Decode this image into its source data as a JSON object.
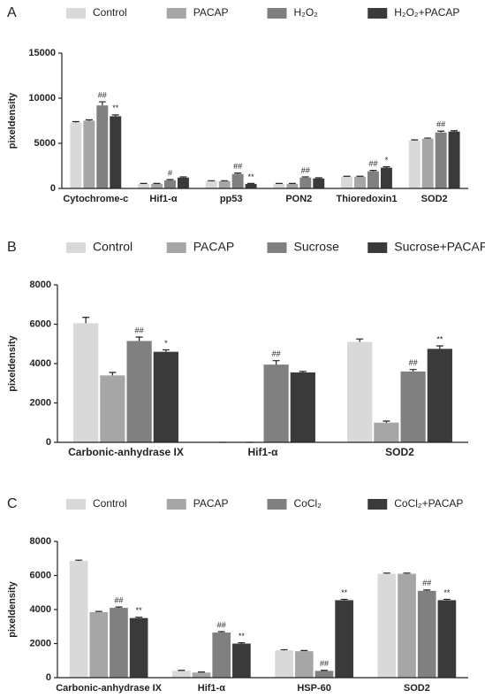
{
  "chart_data": [
    {
      "type": "bar",
      "panel": "A",
      "y_label": "pixeldensity",
      "categories": [
        "Cytochrome-c",
        "Hif1-α",
        "pp53",
        "PON2",
        "Thioredoxin1",
        "SOD2"
      ],
      "ylim": [
        0,
        15000
      ],
      "yticks": [
        0,
        5000,
        10000,
        15000
      ],
      "series": [
        {
          "name": "Control",
          "color": "#d9d9d9",
          "values": [
            7300,
            500,
            800,
            500,
            1300,
            5300
          ],
          "errors": [
            100,
            50,
            50,
            50,
            50,
            80
          ],
          "annotations": [
            null,
            null,
            null,
            null,
            null,
            null
          ]
        },
        {
          "name": "PACAP",
          "color": "#a6a6a6",
          "values": [
            7500,
            500,
            800,
            500,
            1300,
            5500
          ],
          "errors": [
            100,
            50,
            50,
            50,
            50,
            80
          ],
          "annotations": [
            null,
            null,
            null,
            null,
            null,
            null
          ]
        },
        {
          "name": "H₂O₂",
          "color": "#808080",
          "values": [
            9200,
            900,
            1600,
            1200,
            1900,
            6200
          ],
          "errors": [
            400,
            80,
            100,
            80,
            100,
            150
          ],
          "annotations": [
            "##",
            "#",
            "##",
            "##",
            "##",
            "##"
          ]
        },
        {
          "name": "H₂O₂+PACAP",
          "color": "#3a3a3a",
          "values": [
            8000,
            1200,
            500,
            1100,
            2300,
            6300
          ],
          "errors": [
            150,
            80,
            50,
            80,
            100,
            100
          ],
          "annotations": [
            "**",
            null,
            "**",
            null,
            "*",
            null
          ]
        }
      ]
    },
    {
      "type": "bar",
      "panel": "B",
      "y_label": "pixeldensity",
      "categories": [
        "Carbonic-anhydrase IX",
        "Hif1-α",
        "SOD2"
      ],
      "ylim": [
        0,
        8000
      ],
      "yticks": [
        0,
        2000,
        4000,
        6000,
        8000
      ],
      "series": [
        {
          "name": "Control",
          "color": "#d9d9d9",
          "values": [
            6050,
            0,
            5100
          ],
          "errors": [
            300,
            0,
            150
          ],
          "annotations": [
            null,
            null,
            null
          ]
        },
        {
          "name": "PACAP",
          "color": "#a6a6a6",
          "values": [
            3400,
            0,
            1000
          ],
          "errors": [
            150,
            0,
            80
          ],
          "annotations": [
            null,
            null,
            null
          ]
        },
        {
          "name": "Sucrose",
          "color": "#808080",
          "values": [
            5150,
            3950,
            3600
          ],
          "errors": [
            200,
            200,
            100
          ],
          "annotations": [
            "##",
            "##",
            "##"
          ]
        },
        {
          "name": "Sucrose+PACAP",
          "color": "#3a3a3a",
          "values": [
            4600,
            3550,
            4750
          ],
          "errors": [
            100,
            50,
            150
          ],
          "annotations": [
            "*",
            null,
            "**"
          ]
        }
      ]
    },
    {
      "type": "bar",
      "panel": "C",
      "y_label": "pixeldensity",
      "categories": [
        "Carbonic-anhydrase IX",
        "Hif1-α",
        "HSP-60",
        "SOD2"
      ],
      "ylim": [
        0,
        8000
      ],
      "yticks": [
        0,
        2000,
        4000,
        6000,
        8000
      ],
      "series": [
        {
          "name": "Control",
          "color": "#d9d9d9",
          "values": [
            6850,
            400,
            1600,
            6100
          ],
          "errors": [
            50,
            30,
            40,
            40
          ],
          "annotations": [
            null,
            null,
            null,
            null
          ]
        },
        {
          "name": "PACAP",
          "color": "#a6a6a6",
          "values": [
            3850,
            300,
            1550,
            6100
          ],
          "errors": [
            40,
            30,
            40,
            40
          ],
          "annotations": [
            null,
            null,
            null,
            null
          ]
        },
        {
          "name": "CoCl₂",
          "color": "#808080",
          "values": [
            4100,
            2650,
            400,
            5100
          ],
          "errors": [
            50,
            50,
            30,
            50
          ],
          "annotations": [
            "##",
            "##",
            "##",
            "##"
          ]
        },
        {
          "name": "CoCl₂+PACAP",
          "color": "#3a3a3a",
          "values": [
            3500,
            2000,
            4550,
            4550
          ],
          "errors": [
            50,
            50,
            50,
            50
          ],
          "annotations": [
            "**",
            "**",
            "**",
            "**"
          ]
        }
      ]
    }
  ]
}
